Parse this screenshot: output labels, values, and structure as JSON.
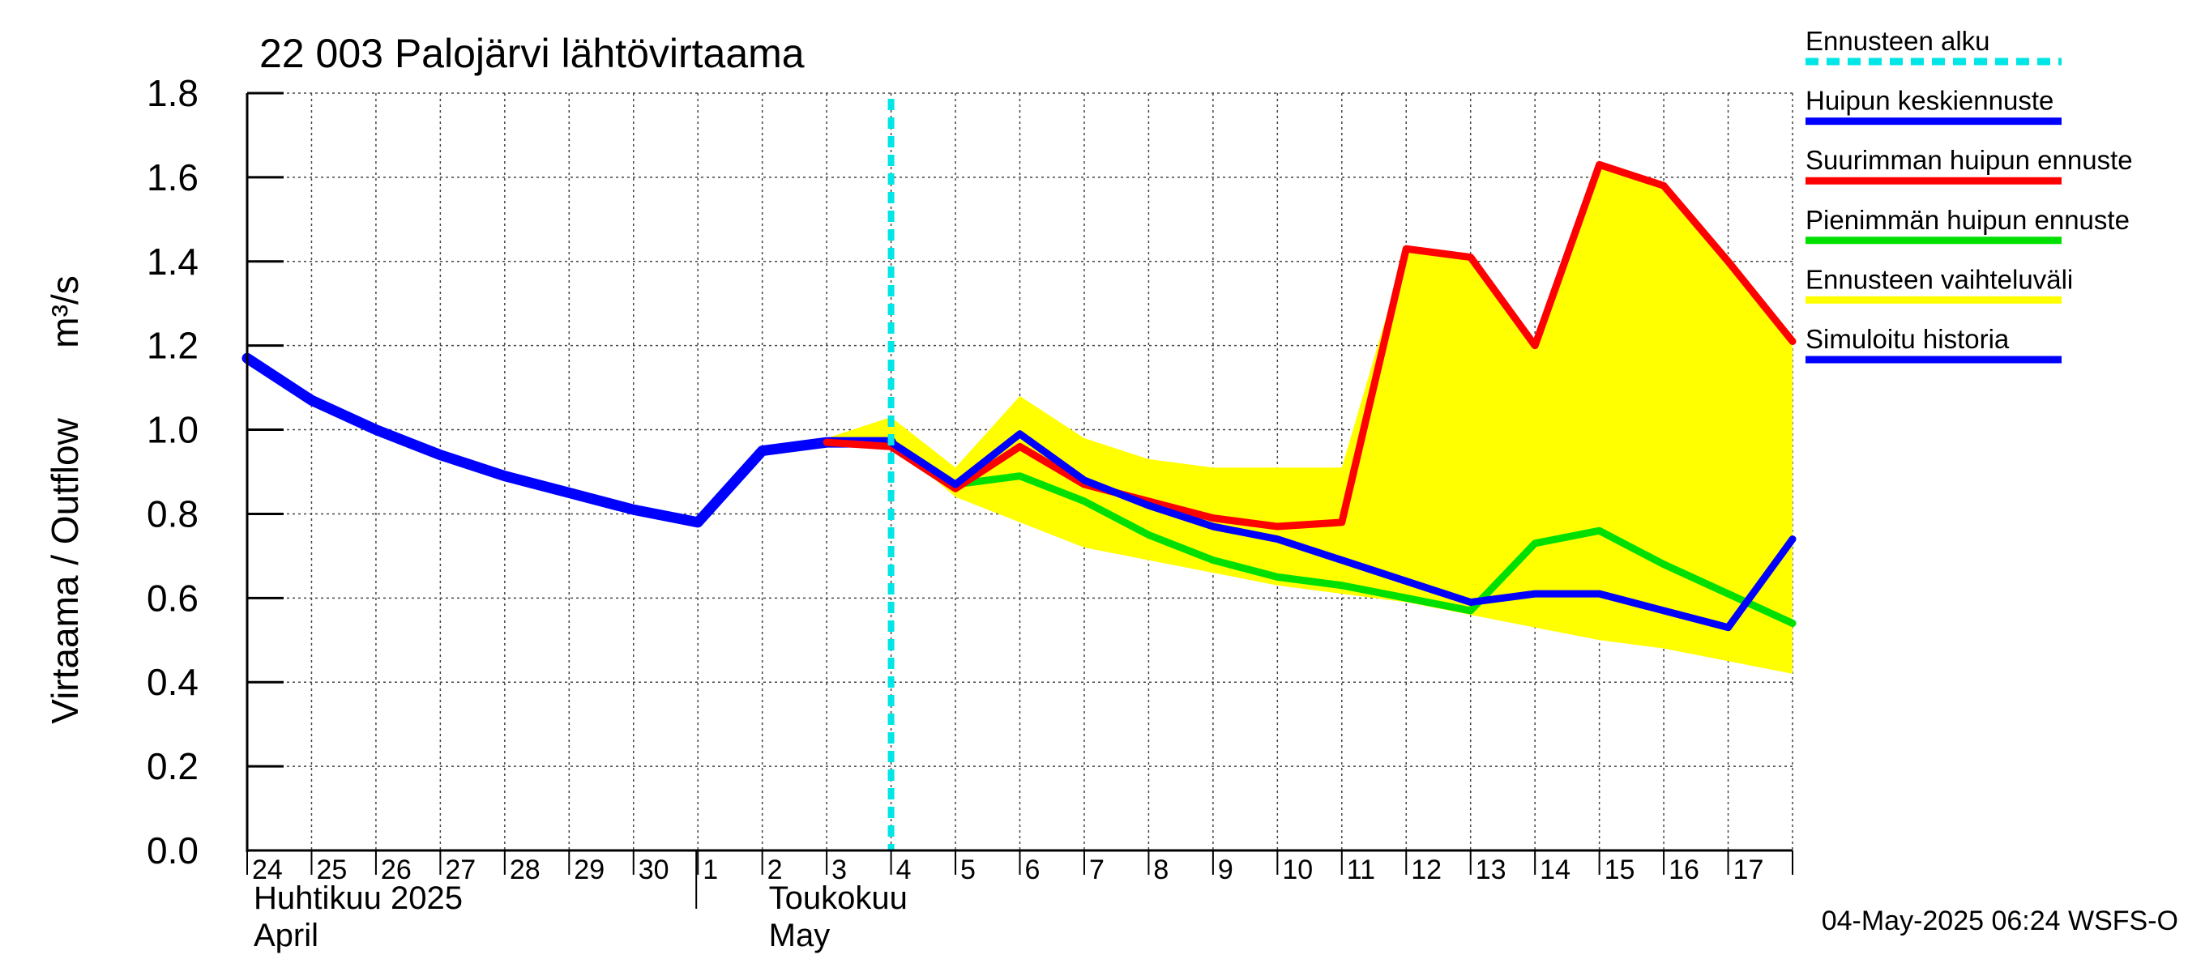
{
  "chart_data": {
    "type": "line",
    "title": "22 003 Palojärvi lähtövirtaama",
    "ylabel_left": "Virtaama / Outflow",
    "ylabel_unit": "m³/s",
    "ylim": [
      0.0,
      1.8
    ],
    "yticks": [
      0.0,
      0.2,
      0.4,
      0.6,
      0.8,
      1.0,
      1.2,
      1.4,
      1.6,
      1.8
    ],
    "ytick_labels": [
      "0.0",
      "0.2",
      "0.4",
      "0.6",
      "0.8",
      "1.0",
      "1.2",
      "1.4",
      "1.6",
      "1.8"
    ],
    "x_dates": [
      "24",
      "25",
      "26",
      "27",
      "28",
      "29",
      "30",
      "1",
      "2",
      "3",
      "4",
      "5",
      "6",
      "7",
      "8",
      "9",
      "10",
      "11",
      "12",
      "13",
      "14",
      "15",
      "16",
      "17"
    ],
    "x_month_labels": [
      {
        "fi": "Huhtikuu  2025",
        "en": "April",
        "at_index": 0
      },
      {
        "fi": "Toukokuu",
        "en": "May",
        "at_index": 8
      }
    ],
    "month_boundary_index": 7,
    "forecast_start_x": 10.0,
    "series": [
      {
        "name": "Ennusteen vaihteluväli",
        "role": "band",
        "color": "#ffff00",
        "x": [
          8.8,
          10,
          11,
          12,
          13,
          14,
          15,
          16,
          17,
          18,
          19,
          20,
          21,
          22,
          23,
          24
        ],
        "upper": [
          0.97,
          1.03,
          0.91,
          1.08,
          0.98,
          0.93,
          0.91,
          0.91,
          0.91,
          1.43,
          1.41,
          1.2,
          1.63,
          1.58,
          1.4,
          1.21
        ],
        "lower": [
          0.97,
          0.97,
          0.84,
          0.78,
          0.72,
          0.69,
          0.66,
          0.63,
          0.61,
          0.59,
          0.56,
          0.53,
          0.5,
          0.48,
          0.45,
          0.42
        ]
      },
      {
        "name": "Simuloitu historia",
        "role": "line",
        "color": "#0000ff",
        "x": [
          0,
          1,
          2,
          3,
          4,
          5,
          6,
          7,
          8,
          9,
          10
        ],
        "values": [
          1.17,
          1.07,
          1.0,
          0.94,
          0.89,
          0.85,
          0.81,
          0.78,
          0.95,
          0.97,
          0.97
        ]
      },
      {
        "name": "Pienimmän huipun ennuste",
        "role": "line",
        "color": "#00e000",
        "x": [
          10,
          11,
          12,
          13,
          14,
          15,
          16,
          17,
          18,
          19,
          20,
          21,
          22,
          23,
          24
        ],
        "values": [
          0.97,
          0.87,
          0.89,
          0.83,
          0.75,
          0.69,
          0.65,
          0.63,
          0.6,
          0.57,
          0.73,
          0.76,
          0.68,
          0.61,
          0.54
        ]
      },
      {
        "name": "Suurimman huipun ennuste",
        "role": "line",
        "color": "#ff0000",
        "x": [
          9,
          10,
          11,
          12,
          13,
          14,
          15,
          16,
          17,
          18,
          19,
          20,
          21,
          22,
          23,
          24
        ],
        "values": [
          0.97,
          0.96,
          0.86,
          0.96,
          0.87,
          0.83,
          0.79,
          0.77,
          0.78,
          1.43,
          1.41,
          1.2,
          1.63,
          1.58,
          1.4,
          1.21
        ]
      },
      {
        "name": "Huipun keskiennuste",
        "role": "line",
        "color": "#0000ff",
        "x": [
          10,
          11,
          12,
          13,
          14,
          15,
          16,
          17,
          18,
          19,
          20,
          21,
          22,
          23,
          24
        ],
        "values": [
          0.97,
          0.87,
          0.99,
          0.88,
          0.82,
          0.77,
          0.74,
          0.69,
          0.64,
          0.59,
          0.61,
          0.61,
          0.57,
          0.53,
          0.74
        ]
      }
    ],
    "legend": [
      {
        "label": "Ennusteen alku",
        "color": "#00e5e5",
        "style": "dashed"
      },
      {
        "label": "Huipun keskiennuste",
        "color": "#0000ff",
        "style": "solid"
      },
      {
        "label": "Suurimman huipun ennuste",
        "color": "#ff0000",
        "style": "solid"
      },
      {
        "label": "Pienimmän huipun ennuste",
        "color": "#00e000",
        "style": "solid"
      },
      {
        "label": "Ennusteen vaihteluväli",
        "color": "#ffff00",
        "style": "solid"
      },
      {
        "label": "Simuloitu historia",
        "color": "#0000ff",
        "style": "solid"
      }
    ],
    "legend_position": "right",
    "grid": true,
    "footer": "04-May-2025 06:24 WSFS-O"
  }
}
